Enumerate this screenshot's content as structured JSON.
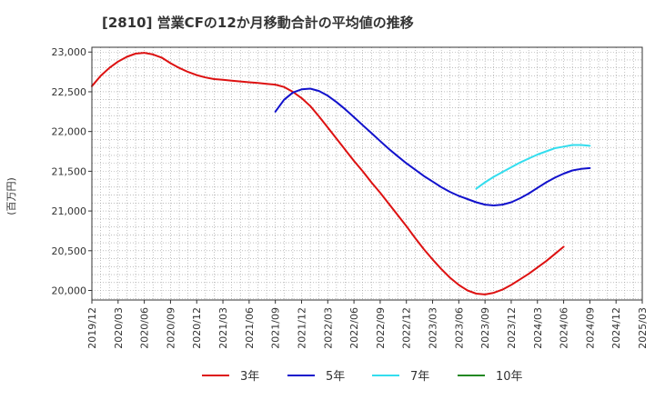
{
  "title": "[2810]  営業CFの12か月移動合計の平均値の推移",
  "colors": {
    "3y": "#dd1111",
    "5y": "#1111cc",
    "7y": "#33ddee",
    "10y": "#228822"
  },
  "chart_data": {
    "type": "line",
    "title": "[2810]  営業CFの12か月移動合計の平均値の推移",
    "ylabel": "(百万円)",
    "xlabel": "",
    "ylim": [
      19880,
      23060
    ],
    "xlim": [
      "2019/12",
      "2025/03"
    ],
    "y_ticks": [
      20000,
      20500,
      21000,
      21500,
      22000,
      22500,
      23000
    ],
    "y_tick_labels": [
      "20,000",
      "20,500",
      "21,000",
      "21,500",
      "22,000",
      "22,500",
      "23,000"
    ],
    "x_ticks": [
      "2019/12",
      "2020/03",
      "2020/06",
      "2020/09",
      "2020/12",
      "2021/03",
      "2021/06",
      "2021/09",
      "2021/12",
      "2022/03",
      "2022/06",
      "2022/09",
      "2022/12",
      "2023/03",
      "2023/06",
      "2023/09",
      "2023/12",
      "2024/03",
      "2024/06",
      "2024/09",
      "2024/12",
      "2025/03"
    ],
    "grid": true,
    "legend_position": "bottom",
    "series": [
      {
        "name": "3年",
        "color": "#dd1111",
        "points": [
          [
            "2019/12",
            22570
          ],
          [
            "2020/01",
            22700
          ],
          [
            "2020/02",
            22800
          ],
          [
            "2020/03",
            22880
          ],
          [
            "2020/04",
            22940
          ],
          [
            "2020/05",
            22980
          ],
          [
            "2020/06",
            22990
          ],
          [
            "2020/07",
            22970
          ],
          [
            "2020/08",
            22930
          ],
          [
            "2020/09",
            22860
          ],
          [
            "2020/10",
            22800
          ],
          [
            "2020/11",
            22750
          ],
          [
            "2020/12",
            22710
          ],
          [
            "2021/01",
            22680
          ],
          [
            "2021/02",
            22660
          ],
          [
            "2021/03",
            22650
          ],
          [
            "2021/04",
            22640
          ],
          [
            "2021/05",
            22630
          ],
          [
            "2021/06",
            22620
          ],
          [
            "2021/07",
            22610
          ],
          [
            "2021/08",
            22600
          ],
          [
            "2021/09",
            22590
          ],
          [
            "2021/10",
            22560
          ],
          [
            "2021/11",
            22500
          ],
          [
            "2021/12",
            22420
          ],
          [
            "2022/01",
            22320
          ],
          [
            "2022/02",
            22190
          ],
          [
            "2022/03",
            22050
          ],
          [
            "2022/04",
            21910
          ],
          [
            "2022/05",
            21770
          ],
          [
            "2022/06",
            21630
          ],
          [
            "2022/07",
            21500
          ],
          [
            "2022/08",
            21360
          ],
          [
            "2022/09",
            21230
          ],
          [
            "2022/10",
            21090
          ],
          [
            "2022/11",
            20950
          ],
          [
            "2022/12",
            20810
          ],
          [
            "2023/01",
            20660
          ],
          [
            "2023/02",
            20520
          ],
          [
            "2023/03",
            20390
          ],
          [
            "2023/04",
            20270
          ],
          [
            "2023/05",
            20160
          ],
          [
            "2023/06",
            20070
          ],
          [
            "2023/07",
            20000
          ],
          [
            "2023/08",
            19960
          ],
          [
            "2023/09",
            19950
          ],
          [
            "2023/10",
            19970
          ],
          [
            "2023/11",
            20010
          ],
          [
            "2023/12",
            20070
          ],
          [
            "2024/01",
            20140
          ],
          [
            "2024/02",
            20210
          ],
          [
            "2024/03",
            20290
          ],
          [
            "2024/04",
            20370
          ],
          [
            "2024/05",
            20460
          ],
          [
            "2024/06",
            20550
          ]
        ]
      },
      {
        "name": "5年",
        "color": "#1111cc",
        "points": [
          [
            "2021/09",
            22250
          ],
          [
            "2021/10",
            22400
          ],
          [
            "2021/11",
            22490
          ],
          [
            "2021/12",
            22530
          ],
          [
            "2022/01",
            22540
          ],
          [
            "2022/02",
            22510
          ],
          [
            "2022/03",
            22450
          ],
          [
            "2022/04",
            22370
          ],
          [
            "2022/05",
            22280
          ],
          [
            "2022/06",
            22180
          ],
          [
            "2022/07",
            22080
          ],
          [
            "2022/08",
            21980
          ],
          [
            "2022/09",
            21880
          ],
          [
            "2022/10",
            21780
          ],
          [
            "2022/11",
            21690
          ],
          [
            "2022/12",
            21600
          ],
          [
            "2023/01",
            21520
          ],
          [
            "2023/02",
            21440
          ],
          [
            "2023/03",
            21370
          ],
          [
            "2023/04",
            21300
          ],
          [
            "2023/05",
            21240
          ],
          [
            "2023/06",
            21190
          ],
          [
            "2023/07",
            21150
          ],
          [
            "2023/08",
            21110
          ],
          [
            "2023/09",
            21080
          ],
          [
            "2023/10",
            21070
          ],
          [
            "2023/11",
            21080
          ],
          [
            "2023/12",
            21110
          ],
          [
            "2024/01",
            21160
          ],
          [
            "2024/02",
            21220
          ],
          [
            "2024/03",
            21290
          ],
          [
            "2024/04",
            21360
          ],
          [
            "2024/05",
            21420
          ],
          [
            "2024/06",
            21470
          ],
          [
            "2024/07",
            21510
          ],
          [
            "2024/08",
            21530
          ],
          [
            "2024/09",
            21540
          ]
        ]
      },
      {
        "name": "7年",
        "color": "#33ddee",
        "points": [
          [
            "2023/08",
            21280
          ],
          [
            "2023/09",
            21360
          ],
          [
            "2023/10",
            21430
          ],
          [
            "2023/11",
            21490
          ],
          [
            "2023/12",
            21550
          ],
          [
            "2024/01",
            21610
          ],
          [
            "2024/02",
            21660
          ],
          [
            "2024/03",
            21710
          ],
          [
            "2024/04",
            21750
          ],
          [
            "2024/05",
            21790
          ],
          [
            "2024/06",
            21810
          ],
          [
            "2024/07",
            21830
          ],
          [
            "2024/08",
            21830
          ],
          [
            "2024/09",
            21820
          ]
        ]
      },
      {
        "name": "10年",
        "color": "#228822",
        "points": []
      }
    ]
  }
}
